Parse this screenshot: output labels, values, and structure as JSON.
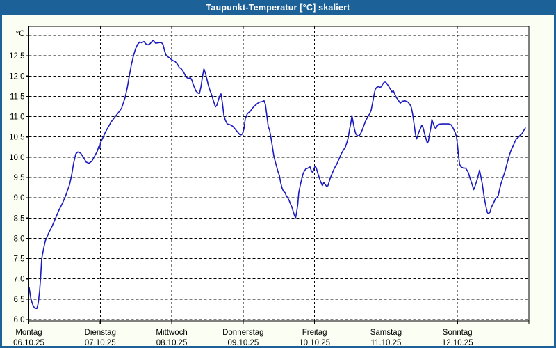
{
  "window": {
    "title": "Taupunkt-Temperatur [°C] skaliert"
  },
  "colors": {
    "titlebar": "#1c6299",
    "window_background": "#fbfef3",
    "plot_background": "#ffffff",
    "line": "#1a1ac0",
    "grid": "#000000",
    "frame": "#000000",
    "title_text": "#ffffff",
    "axis_text": "#000000"
  },
  "chart_data": {
    "type": "line",
    "title": "Taupunkt-Temperatur [°C] skaliert",
    "ylabel": "°C",
    "xlabel": "",
    "ylim": [
      6.0,
      13.0
    ],
    "ytick_step": 0.5,
    "grid": "dashed",
    "legend": "none",
    "yticks": [
      {
        "value": 6.0,
        "label": "6,0"
      },
      {
        "value": 6.5,
        "label": "6,5"
      },
      {
        "value": 7.0,
        "label": "7,0"
      },
      {
        "value": 7.5,
        "label": "7,5"
      },
      {
        "value": 8.0,
        "label": "8,0"
      },
      {
        "value": 8.5,
        "label": "8,5"
      },
      {
        "value": 9.0,
        "label": "9,0"
      },
      {
        "value": 9.5,
        "label": "9,5"
      },
      {
        "value": 10.0,
        "label": "10,0"
      },
      {
        "value": 10.5,
        "label": "10,5"
      },
      {
        "value": 11.0,
        "label": "11,0"
      },
      {
        "value": 11.5,
        "label": "11,5"
      },
      {
        "value": 12.0,
        "label": "12,0"
      },
      {
        "value": 12.5,
        "label": "12,5"
      }
    ],
    "x_days": [
      {
        "name": "Montag",
        "date": "06.10.25"
      },
      {
        "name": "Dienstag",
        "date": "07.10.25"
      },
      {
        "name": "Mittwoch",
        "date": "08.10.25"
      },
      {
        "name": "Donnerstag",
        "date": "09.10.25"
      },
      {
        "name": "Freitag",
        "date": "10.10.25"
      },
      {
        "name": "Samstag",
        "date": "11.10.25"
      },
      {
        "name": "Sonntag",
        "date": "12.10.25"
      }
    ],
    "series": [
      {
        "name": "Taupunkt-Temperatur",
        "unit": "°C",
        "x_unit": "days_from_monday_start",
        "points": [
          [
            0.005,
            6.78
          ],
          [
            0.024,
            6.55
          ],
          [
            0.044,
            6.42
          ],
          [
            0.063,
            6.33
          ],
          [
            0.083,
            6.28
          ],
          [
            0.112,
            6.27
          ],
          [
            0.131,
            6.4
          ],
          [
            0.151,
            6.7
          ],
          [
            0.165,
            7.05
          ],
          [
            0.18,
            7.5
          ],
          [
            0.199,
            7.68
          ],
          [
            0.229,
            7.93
          ],
          [
            0.277,
            8.13
          ],
          [
            0.326,
            8.3
          ],
          [
            0.375,
            8.5
          ],
          [
            0.423,
            8.7
          ],
          [
            0.472,
            8.87
          ],
          [
            0.52,
            9.07
          ],
          [
            0.569,
            9.32
          ],
          [
            0.598,
            9.55
          ],
          [
            0.627,
            9.85
          ],
          [
            0.657,
            10.08
          ],
          [
            0.686,
            10.13
          ],
          [
            0.725,
            10.1
          ],
          [
            0.764,
            10.0
          ],
          [
            0.803,
            9.88
          ],
          [
            0.841,
            9.85
          ],
          [
            0.88,
            9.9
          ],
          [
            0.919,
            10.02
          ],
          [
            0.958,
            10.15
          ],
          [
            0.978,
            10.26
          ],
          [
            0.992,
            10.22
          ],
          [
            1.004,
            10.36
          ],
          [
            1.036,
            10.48
          ],
          [
            1.075,
            10.63
          ],
          [
            1.114,
            10.75
          ],
          [
            1.153,
            10.87
          ],
          [
            1.201,
            10.98
          ],
          [
            1.25,
            11.09
          ],
          [
            1.299,
            11.21
          ],
          [
            1.347,
            11.47
          ],
          [
            1.377,
            11.7
          ],
          [
            1.406,
            12.0
          ],
          [
            1.435,
            12.28
          ],
          [
            1.464,
            12.5
          ],
          [
            1.493,
            12.67
          ],
          [
            1.522,
            12.78
          ],
          [
            1.552,
            12.84
          ],
          [
            1.581,
            12.82
          ],
          [
            1.61,
            12.85
          ],
          [
            1.639,
            12.79
          ],
          [
            1.668,
            12.77
          ],
          [
            1.698,
            12.8
          ],
          [
            1.727,
            12.86
          ],
          [
            1.741,
            12.88
          ],
          [
            1.756,
            12.85
          ],
          [
            1.775,
            12.81
          ],
          [
            1.814,
            12.82
          ],
          [
            1.853,
            12.83
          ],
          [
            1.878,
            12.78
          ],
          [
            1.902,
            12.61
          ],
          [
            1.921,
            12.52
          ],
          [
            1.941,
            12.48
          ],
          [
            1.97,
            12.45
          ],
          [
            1.994,
            12.41
          ],
          [
            2.019,
            12.38
          ],
          [
            2.048,
            12.36
          ],
          [
            2.077,
            12.3
          ],
          [
            2.106,
            12.21
          ],
          [
            2.135,
            12.18
          ],
          [
            2.155,
            12.13
          ],
          [
            2.174,
            12.07
          ],
          [
            2.204,
            11.97
          ],
          [
            2.233,
            11.94
          ],
          [
            2.262,
            11.96
          ],
          [
            2.281,
            11.9
          ],
          [
            2.311,
            11.75
          ],
          [
            2.34,
            11.63
          ],
          [
            2.369,
            11.58
          ],
          [
            2.388,
            11.57
          ],
          [
            2.408,
            11.72
          ],
          [
            2.427,
            11.95
          ],
          [
            2.451,
            12.18
          ],
          [
            2.476,
            12.05
          ],
          [
            2.495,
            11.9
          ],
          [
            2.515,
            11.76
          ],
          [
            2.534,
            11.65
          ],
          [
            2.554,
            11.56
          ],
          [
            2.573,
            11.45
          ],
          [
            2.592,
            11.35
          ],
          [
            2.612,
            11.24
          ],
          [
            2.631,
            11.28
          ],
          [
            2.651,
            11.4
          ],
          [
            2.67,
            11.5
          ],
          [
            2.69,
            11.56
          ],
          [
            2.709,
            11.35
          ],
          [
            2.729,
            11.05
          ],
          [
            2.748,
            10.92
          ],
          [
            2.777,
            10.82
          ],
          [
            2.816,
            10.8
          ],
          [
            2.855,
            10.76
          ],
          [
            2.894,
            10.68
          ],
          [
            2.923,
            10.62
          ],
          [
            2.952,
            10.56
          ],
          [
            2.972,
            10.55
          ],
          [
            2.991,
            10.58
          ],
          [
            3.011,
            10.7
          ],
          [
            3.03,
            10.95
          ],
          [
            3.059,
            11.07
          ],
          [
            3.098,
            11.13
          ],
          [
            3.137,
            11.22
          ],
          [
            3.176,
            11.29
          ],
          [
            3.205,
            11.33
          ],
          [
            3.235,
            11.36
          ],
          [
            3.264,
            11.37
          ],
          [
            3.293,
            11.39
          ],
          [
            3.312,
            11.3
          ],
          [
            3.332,
            11.02
          ],
          [
            3.351,
            10.76
          ],
          [
            3.371,
            10.66
          ],
          [
            3.39,
            10.48
          ],
          [
            3.41,
            10.25
          ],
          [
            3.429,
            10.03
          ],
          [
            3.448,
            9.9
          ],
          [
            3.468,
            9.77
          ],
          [
            3.487,
            9.65
          ],
          [
            3.507,
            9.55
          ],
          [
            3.526,
            9.37
          ],
          [
            3.546,
            9.23
          ],
          [
            3.565,
            9.16
          ],
          [
            3.585,
            9.13
          ],
          [
            3.604,
            9.05
          ],
          [
            3.623,
            9.0
          ],
          [
            3.643,
            8.94
          ],
          [
            3.662,
            8.85
          ],
          [
            3.682,
            8.77
          ],
          [
            3.701,
            8.66
          ],
          [
            3.721,
            8.55
          ],
          [
            3.735,
            8.51
          ],
          [
            3.75,
            8.65
          ],
          [
            3.764,
            8.83
          ],
          [
            3.779,
            9.13
          ],
          [
            3.798,
            9.3
          ],
          [
            3.818,
            9.45
          ],
          [
            3.837,
            9.58
          ],
          [
            3.857,
            9.66
          ],
          [
            3.876,
            9.71
          ],
          [
            3.905,
            9.73
          ],
          [
            3.935,
            9.76
          ],
          [
            3.954,
            9.67
          ],
          [
            3.973,
            9.62
          ],
          [
            3.988,
            9.7
          ],
          [
            4.007,
            9.78
          ],
          [
            4.022,
            9.74
          ],
          [
            4.051,
            9.57
          ],
          [
            4.08,
            9.42
          ],
          [
            4.109,
            9.3
          ],
          [
            4.129,
            9.38
          ],
          [
            4.148,
            9.33
          ],
          [
            4.168,
            9.28
          ],
          [
            4.187,
            9.3
          ],
          [
            4.217,
            9.47
          ],
          [
            4.246,
            9.6
          ],
          [
            4.275,
            9.72
          ],
          [
            4.314,
            9.84
          ],
          [
            4.343,
            9.96
          ],
          [
            4.372,
            10.08
          ],
          [
            4.401,
            10.17
          ],
          [
            4.431,
            10.25
          ],
          [
            4.45,
            10.35
          ],
          [
            4.47,
            10.48
          ],
          [
            4.489,
            10.68
          ],
          [
            4.509,
            10.86
          ],
          [
            4.523,
            11.03
          ],
          [
            4.538,
            10.88
          ],
          [
            4.557,
            10.7
          ],
          [
            4.577,
            10.57
          ],
          [
            4.601,
            10.53
          ],
          [
            4.625,
            10.53
          ],
          [
            4.655,
            10.62
          ],
          [
            4.684,
            10.75
          ],
          [
            4.713,
            10.89
          ],
          [
            4.742,
            10.99
          ],
          [
            4.771,
            11.07
          ],
          [
            4.791,
            11.15
          ],
          [
            4.81,
            11.32
          ],
          [
            4.83,
            11.52
          ],
          [
            4.849,
            11.67
          ],
          [
            4.868,
            11.72
          ],
          [
            4.898,
            11.74
          ],
          [
            4.917,
            11.72
          ],
          [
            4.937,
            11.74
          ],
          [
            4.956,
            11.81
          ],
          [
            4.975,
            11.85
          ],
          [
            4.995,
            11.85
          ],
          [
            5.014,
            11.81
          ],
          [
            5.043,
            11.73
          ],
          [
            5.063,
            11.67
          ],
          [
            5.082,
            11.61
          ],
          [
            5.102,
            11.64
          ],
          [
            5.121,
            11.56
          ],
          [
            5.141,
            11.48
          ],
          [
            5.17,
            11.41
          ],
          [
            5.199,
            11.33
          ],
          [
            5.228,
            11.38
          ],
          [
            5.267,
            11.39
          ],
          [
            5.306,
            11.36
          ],
          [
            5.335,
            11.3
          ],
          [
            5.355,
            11.22
          ],
          [
            5.374,
            11.05
          ],
          [
            5.394,
            10.8
          ],
          [
            5.413,
            10.56
          ],
          [
            5.428,
            10.45
          ],
          [
            5.442,
            10.52
          ],
          [
            5.462,
            10.63
          ],
          [
            5.481,
            10.7
          ],
          [
            5.501,
            10.79
          ],
          [
            5.52,
            10.72
          ],
          [
            5.54,
            10.58
          ],
          [
            5.559,
            10.46
          ],
          [
            5.578,
            10.35
          ],
          [
            5.593,
            10.39
          ],
          [
            5.607,
            10.55
          ],
          [
            5.627,
            10.73
          ],
          [
            5.642,
            10.93
          ],
          [
            5.656,
            10.85
          ],
          [
            5.676,
            10.76
          ],
          [
            5.695,
            10.7
          ],
          [
            5.715,
            10.77
          ],
          [
            5.734,
            10.81
          ],
          [
            5.783,
            10.82
          ],
          [
            5.832,
            10.82
          ],
          [
            5.88,
            10.82
          ],
          [
            5.91,
            10.8
          ],
          [
            5.939,
            10.72
          ],
          [
            5.968,
            10.61
          ],
          [
            5.987,
            10.5
          ],
          [
            6.002,
            10.28
          ],
          [
            6.016,
            10.02
          ],
          [
            6.031,
            9.82
          ],
          [
            6.05,
            9.76
          ],
          [
            6.085,
            9.73
          ],
          [
            6.114,
            9.73
          ],
          [
            6.133,
            9.68
          ],
          [
            6.153,
            9.62
          ],
          [
            6.172,
            9.5
          ],
          [
            6.192,
            9.4
          ],
          [
            6.211,
            9.3
          ],
          [
            6.226,
            9.2
          ],
          [
            6.24,
            9.26
          ],
          [
            6.26,
            9.36
          ],
          [
            6.279,
            9.47
          ],
          [
            6.299,
            9.6
          ],
          [
            6.309,
            9.68
          ],
          [
            6.328,
            9.52
          ],
          [
            6.347,
            9.35
          ],
          [
            6.367,
            9.1
          ],
          [
            6.386,
            8.9
          ],
          [
            6.406,
            8.73
          ],
          [
            6.42,
            8.63
          ],
          [
            6.435,
            8.61
          ],
          [
            6.455,
            8.64
          ],
          [
            6.474,
            8.76
          ],
          [
            6.493,
            8.83
          ],
          [
            6.513,
            8.9
          ],
          [
            6.532,
            8.98
          ],
          [
            6.552,
            9.01
          ],
          [
            6.571,
            9.05
          ],
          [
            6.591,
            9.22
          ],
          [
            6.61,
            9.35
          ],
          [
            6.63,
            9.46
          ],
          [
            6.649,
            9.56
          ],
          [
            6.669,
            9.67
          ],
          [
            6.688,
            9.8
          ],
          [
            6.708,
            9.93
          ],
          [
            6.727,
            10.05
          ],
          [
            6.746,
            10.15
          ],
          [
            6.766,
            10.23
          ],
          [
            6.785,
            10.3
          ],
          [
            6.805,
            10.39
          ],
          [
            6.824,
            10.45
          ],
          [
            6.843,
            10.48
          ],
          [
            6.863,
            10.51
          ],
          [
            6.882,
            10.55
          ],
          [
            6.902,
            10.58
          ],
          [
            6.921,
            10.64
          ],
          [
            6.941,
            10.69
          ],
          [
            6.95,
            10.72
          ]
        ]
      }
    ]
  }
}
